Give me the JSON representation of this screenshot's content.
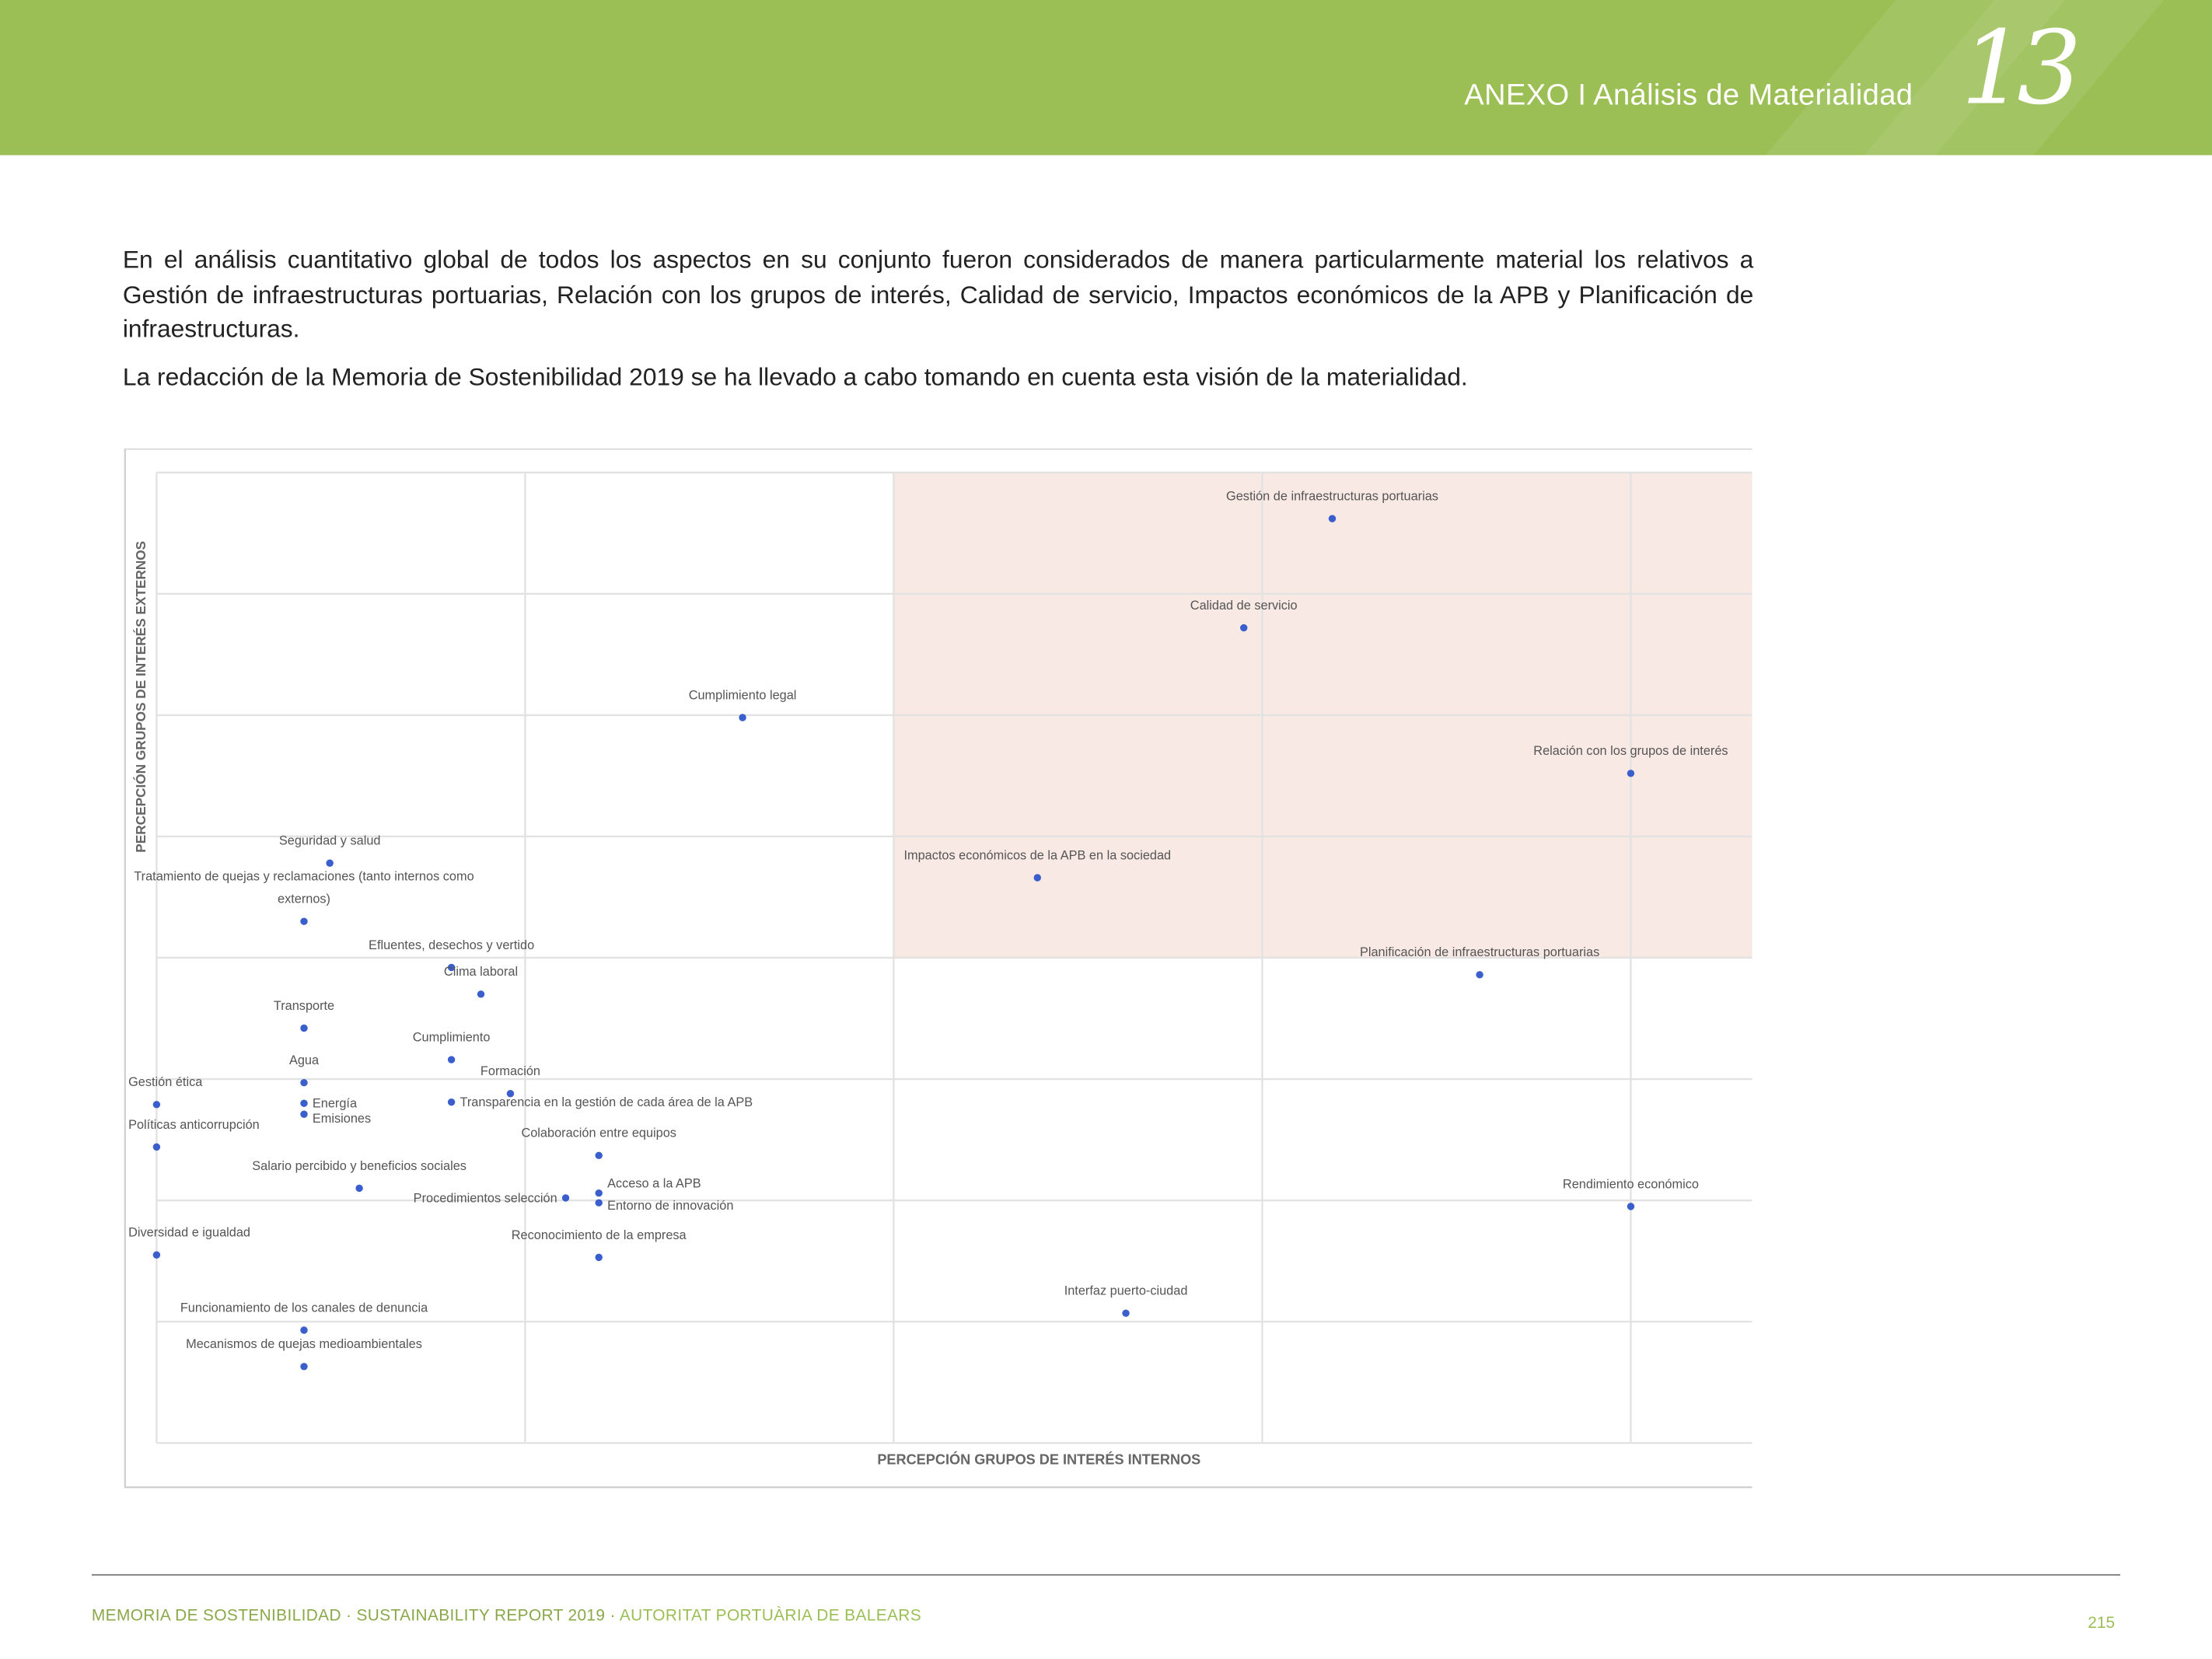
{
  "header": {
    "title": "ANEXO I Análisis de Materialidad",
    "chapter": "13",
    "color": "#9bbf55"
  },
  "body": {
    "paragraphs": [
      "En el análisis cuantitativo global de todos los aspectos en su conjunto fueron considerados de manera particularmente  material los relativos a Gestión de infraestructuras portuarias,  Relación con los grupos de interés, Calidad de servicio, Impactos económicos de la APB y Planificación de infraestructuras.",
      "La redacción de la Memoria de Sostenibilidad 2019 se ha llevado a cabo tomando en cuenta esta visión de la materialidad."
    ]
  },
  "chart_data": {
    "type": "scatter",
    "title": "",
    "xlabel": "PERCEPCIÓN GRUPOS DE INTERÉS INTERNOS",
    "ylabel": "PERCEPCIÓN GRUPOS DE INTERÉS EXTERNOS",
    "xlim": [
      0,
      4.33
    ],
    "ylim": [
      0,
      8
    ],
    "grid": true,
    "highlight_region": {
      "x": [
        2,
        4.33
      ],
      "y": [
        4,
        8
      ],
      "color": "#f9e9e4"
    },
    "point_color": "#3a5fcd",
    "points": [
      {
        "label": "Gestión de infraestructuras portuarias",
        "x": 3.19,
        "y": 7.62
      },
      {
        "label": "Calidad de servicio",
        "x": 2.95,
        "y": 6.72
      },
      {
        "label": "Cumplimiento legal",
        "x": 1.59,
        "y": 5.98
      },
      {
        "label": "Relación con los grupos de interés",
        "x": 4.0,
        "y": 5.52
      },
      {
        "label": "Impactos económicos de la APB en la sociedad",
        "x": 2.39,
        "y": 4.66
      },
      {
        "label": "Planificación de infraestructuras portuarias",
        "x": 3.59,
        "y": 3.86
      },
      {
        "label": "Seguridad y salud",
        "x": 0.47,
        "y": 4.78
      },
      {
        "label": "Tratamiento de quejas y reclamaciones (tanto internos como externos)",
        "x": 0.4,
        "y": 4.3
      },
      {
        "label": "Efluentes, desechos y vertido",
        "x": 0.8,
        "y": 3.92
      },
      {
        "label": "Clima laboral",
        "x": 0.88,
        "y": 3.7
      },
      {
        "label": "Transporte",
        "x": 0.4,
        "y": 3.42
      },
      {
        "label": "Cumplimiento",
        "x": 0.8,
        "y": 3.16
      },
      {
        "label": "Agua",
        "x": 0.4,
        "y": 2.97
      },
      {
        "label": "Energía",
        "x": 0.4,
        "y": 2.8
      },
      {
        "label": "Emisiones",
        "x": 0.4,
        "y": 2.71
      },
      {
        "label": "Transparencia en la gestión de cada área de la APB",
        "x": 0.8,
        "y": 2.81
      },
      {
        "label": "Formación",
        "x": 0.96,
        "y": 2.88
      },
      {
        "label": "Gestión ética",
        "x": 0,
        "y": 2.79
      },
      {
        "label": "Políticas anticorrupción",
        "x": 0,
        "y": 2.44
      },
      {
        "label": "Colaboración entre equipos",
        "x": 1.2,
        "y": 2.37
      },
      {
        "label": "Salario percibido y beneficios sociales",
        "x": 0.55,
        "y": 2.1
      },
      {
        "label": "Procedimientos selección",
        "x": 1.11,
        "y": 2.02
      },
      {
        "label": "Acceso a la APB",
        "x": 1.2,
        "y": 2.06
      },
      {
        "label": "Entorno de innovación",
        "x": 1.2,
        "y": 1.98
      },
      {
        "label": "Rendimiento económico",
        "x": 4.0,
        "y": 1.95
      },
      {
        "label": "Diversidad e igualdad",
        "x": 0,
        "y": 1.55
      },
      {
        "label": "Reconocimiento de la empresa",
        "x": 1.2,
        "y": 1.53
      },
      {
        "label": "Interfaz puerto-ciudad",
        "x": 2.63,
        "y": 1.07
      },
      {
        "label": "Funcionamiento de los canales de denuncia",
        "x": 0.4,
        "y": 0.93
      },
      {
        "label": "Mecanismos de quejas medioambientales",
        "x": 0.4,
        "y": 0.63
      }
    ]
  },
  "footer": {
    "left": "MEMORIA DE SOSTENIBILIDAD · SUSTAINABILITY REPORT 2019 · ",
    "right": "AUTORITAT PORTUÀRIA DE BALEARS",
    "page": "215"
  }
}
